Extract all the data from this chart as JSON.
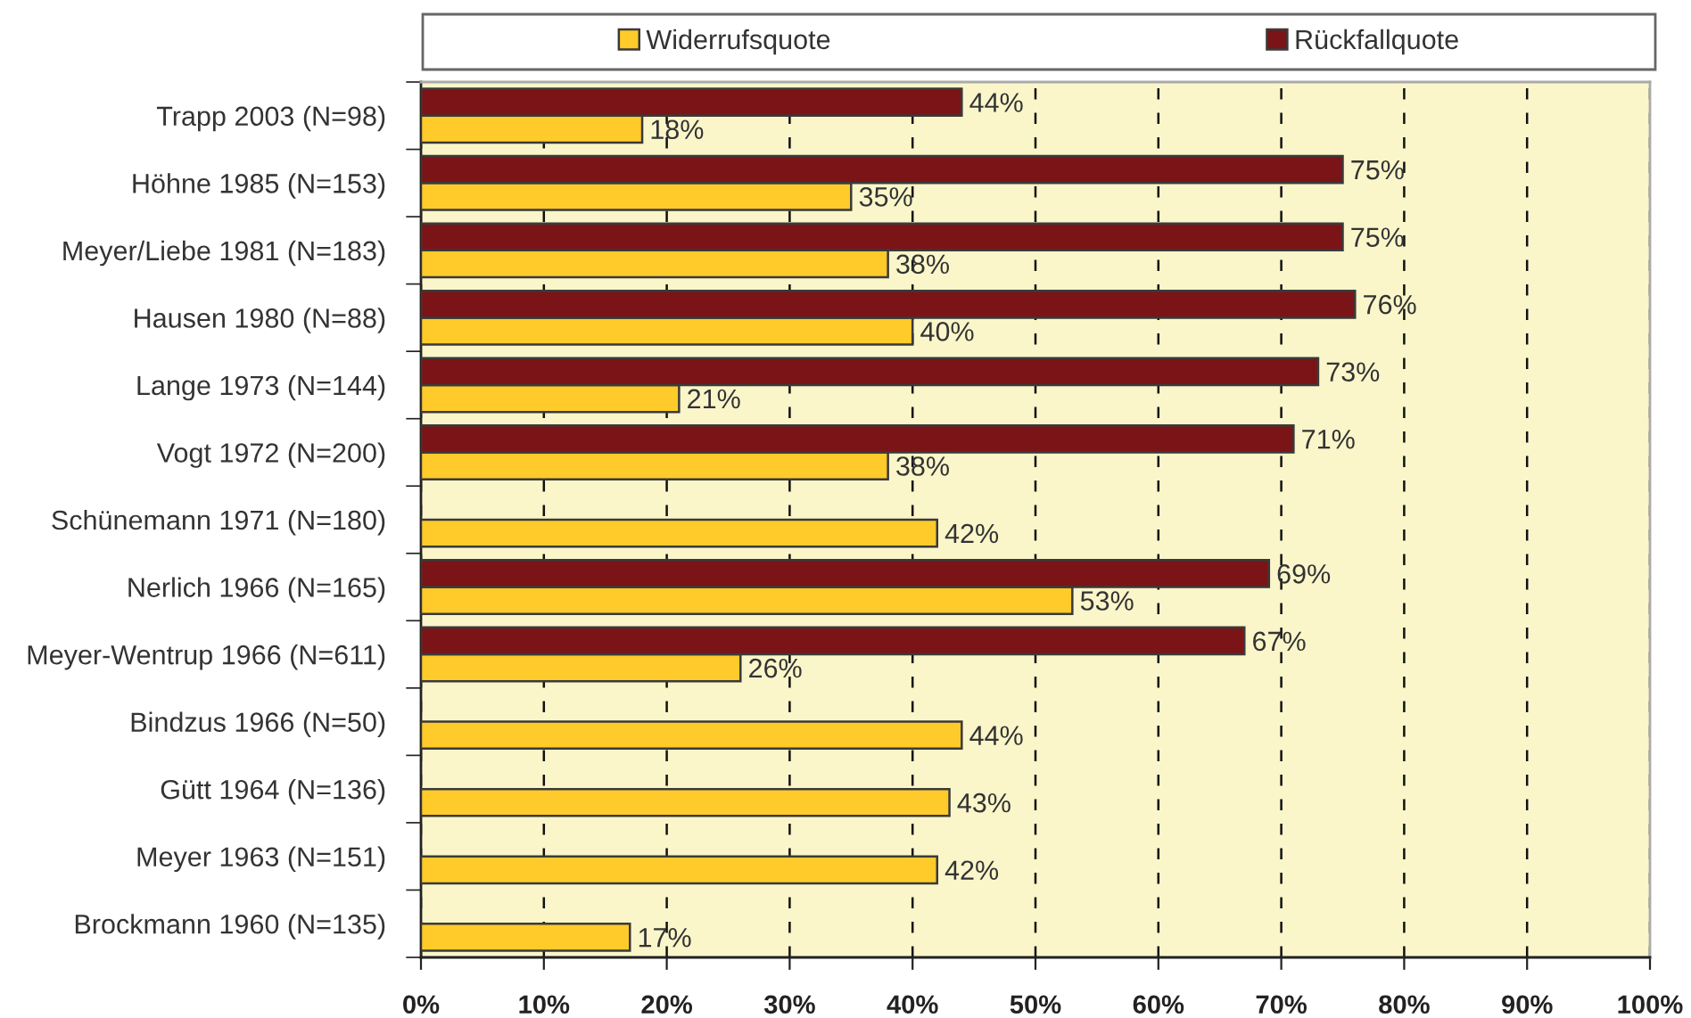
{
  "chart_data": {
    "type": "bar",
    "orientation": "horizontal",
    "categories": [
      "Trapp 2003 (N=98)",
      "Höhne 1985 (N=153)",
      "Meyer/Liebe 1981 (N=183)",
      "Hausen 1980 (N=88)",
      "Lange 1973 (N=144)",
      "Vogt 1972 (N=200)",
      "Schünemann 1971 (N=180)",
      "Nerlich 1966 (N=165)",
      "Meyer-Wentrup 1966 (N=611)",
      "Bindzus 1966 (N=50)",
      "Gütt 1964 (N=136)",
      "Meyer 1963 (N=151)",
      "Brockmann 1960 (N=135)"
    ],
    "series": [
      {
        "name": "Widerrufsquote",
        "color": "#ffcb2b",
        "values": [
          18,
          35,
          38,
          40,
          21,
          38,
          42,
          53,
          26,
          44,
          43,
          42,
          17
        ],
        "value_labels": [
          "18%",
          "35%",
          "38%",
          "40%",
          "21%",
          "38%",
          "42%",
          "53%",
          "26%",
          "44%",
          "43%",
          "42%",
          "17%"
        ]
      },
      {
        "name": "Rückfallquote",
        "color": "#7b1416",
        "values": [
          44,
          75,
          75,
          76,
          73,
          71,
          null,
          69,
          67,
          null,
          null,
          null,
          null
        ],
        "value_labels": [
          "44%",
          "75%",
          "75%",
          "76%",
          "73%",
          "71%",
          null,
          "69%",
          "67%",
          null,
          null,
          null,
          null
        ]
      }
    ],
    "xlim": [
      0,
      100
    ],
    "xticks": [
      {
        "value": 0,
        "label": "0%"
      },
      {
        "value": 10,
        "label": "10%"
      },
      {
        "value": 20,
        "label": "20%"
      },
      {
        "value": 30,
        "label": "30%"
      },
      {
        "value": 40,
        "label": "40%"
      },
      {
        "value": 50,
        "label": "50%"
      },
      {
        "value": 60,
        "label": "60%"
      },
      {
        "value": 70,
        "label": "70%"
      },
      {
        "value": 80,
        "label": "80%"
      },
      {
        "value": 90,
        "label": "90%"
      },
      {
        "value": 100,
        "label": "100%"
      }
    ],
    "grid": "x",
    "legend": "top"
  }
}
